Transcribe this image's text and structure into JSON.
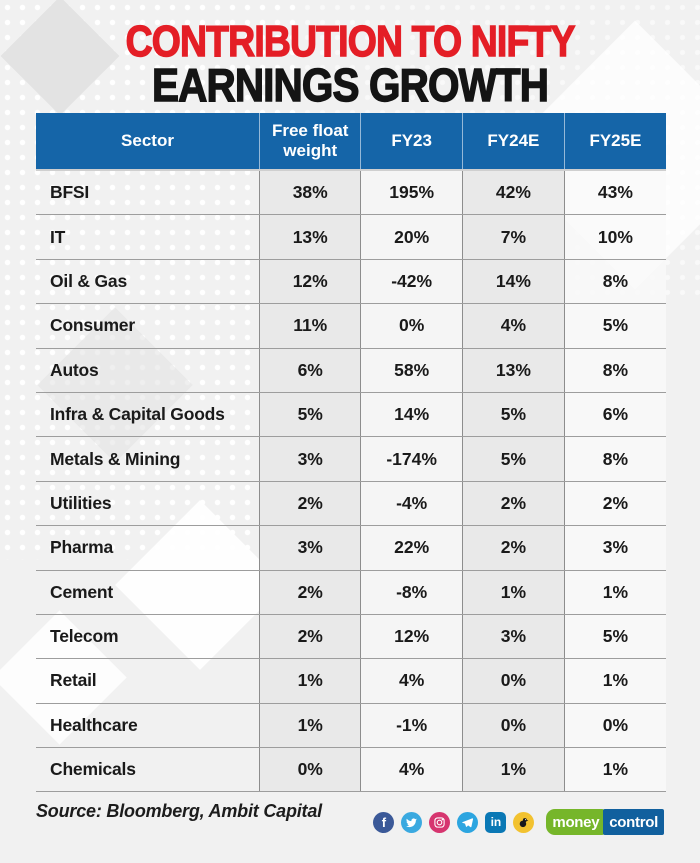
{
  "header": {
    "title_line1": "CONTRIBUTION TO NIFTY",
    "title_line2": "EARNINGS GROWTH"
  },
  "table": {
    "columns": [
      "Sector",
      "Free float weight",
      "FY23",
      "FY24E",
      "FY25E"
    ],
    "rows": [
      {
        "sector": "BFSI",
        "values": [
          "38%",
          "195%",
          "42%",
          "43%"
        ]
      },
      {
        "sector": "IT",
        "values": [
          "13%",
          "20%",
          "7%",
          "10%"
        ]
      },
      {
        "sector": "Oil & Gas",
        "values": [
          "12%",
          "-42%",
          "14%",
          "8%"
        ]
      },
      {
        "sector": "Consumer",
        "values": [
          "11%",
          "0%",
          "4%",
          "5%"
        ]
      },
      {
        "sector": "Autos",
        "values": [
          "6%",
          "58%",
          "13%",
          "8%"
        ]
      },
      {
        "sector": "Infra & Capital Goods",
        "values": [
          "5%",
          "14%",
          "5%",
          "6%"
        ]
      },
      {
        "sector": "Metals & Mining",
        "values": [
          "3%",
          "-174%",
          "5%",
          "8%"
        ]
      },
      {
        "sector": "Utilities",
        "values": [
          "2%",
          "-4%",
          "2%",
          "2%"
        ]
      },
      {
        "sector": "Pharma",
        "values": [
          "3%",
          "22%",
          "2%",
          "3%"
        ]
      },
      {
        "sector": "Cement",
        "values": [
          "2%",
          "-8%",
          "1%",
          "1%"
        ]
      },
      {
        "sector": "Telecom",
        "values": [
          "2%",
          "12%",
          "3%",
          "5%"
        ]
      },
      {
        "sector": "Retail",
        "values": [
          "1%",
          "4%",
          "0%",
          "1%"
        ]
      },
      {
        "sector": "Healthcare",
        "values": [
          "1%",
          "-1%",
          "0%",
          "0%"
        ]
      },
      {
        "sector": "Chemicals",
        "values": [
          "0%",
          "4%",
          "1%",
          "1%"
        ]
      }
    ]
  },
  "chart_data": {
    "type": "table",
    "title": "CONTRIBUTION TO NIFTY EARNINGS GROWTH",
    "columns": [
      "Sector",
      "Free float weight",
      "FY23",
      "FY24E",
      "FY25E"
    ],
    "rows": [
      [
        "BFSI",
        "38%",
        "195%",
        "42%",
        "43%"
      ],
      [
        "IT",
        "13%",
        "20%",
        "7%",
        "10%"
      ],
      [
        "Oil & Gas",
        "12%",
        "-42%",
        "14%",
        "8%"
      ],
      [
        "Consumer",
        "11%",
        "0%",
        "4%",
        "5%"
      ],
      [
        "Autos",
        "6%",
        "58%",
        "13%",
        "8%"
      ],
      [
        "Infra & Capital Goods",
        "5%",
        "14%",
        "5%",
        "6%"
      ],
      [
        "Metals & Mining",
        "3%",
        "-174%",
        "5%",
        "8%"
      ],
      [
        "Utilities",
        "2%",
        "-4%",
        "2%",
        "2%"
      ],
      [
        "Pharma",
        "3%",
        "22%",
        "2%",
        "3%"
      ],
      [
        "Cement",
        "2%",
        "-8%",
        "1%",
        "1%"
      ],
      [
        "Telecom",
        "2%",
        "12%",
        "3%",
        "5%"
      ],
      [
        "Retail",
        "1%",
        "4%",
        "0%",
        "1%"
      ],
      [
        "Healthcare",
        "1%",
        "-1%",
        "0%",
        "0%"
      ],
      [
        "Chemicals",
        "0%",
        "4%",
        "1%",
        "1%"
      ]
    ],
    "source": "Source: Bloomberg, Ambit Capital"
  },
  "footer": {
    "source": "Source: Bloomberg, Ambit Capital",
    "linkedin_label": "in",
    "facebook_label": "f",
    "logo": {
      "part1": "money",
      "part2": "control"
    }
  },
  "colors": {
    "title_red": "#e41e26",
    "title_black": "#141414",
    "header_blue": "#1565a8",
    "cell_gray": "#e9e9e9",
    "logo_green": "#76b62a",
    "logo_blue": "#11609e"
  }
}
